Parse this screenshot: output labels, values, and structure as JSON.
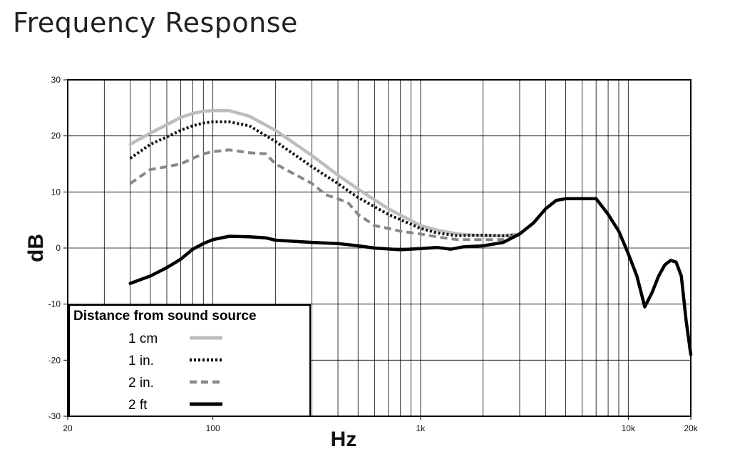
{
  "title": "Frequency Response",
  "chart_data": {
    "type": "line",
    "xlabel": "Hz",
    "ylabel": "dB",
    "xscale": "log",
    "xlim": [
      20,
      20000
    ],
    "ylim": [
      -30,
      30
    ],
    "grid": true,
    "x_tick_labels": [
      {
        "value": 20,
        "label": "20"
      },
      {
        "value": 100,
        "label": "100"
      },
      {
        "value": 1000,
        "label": "1k"
      },
      {
        "value": 10000,
        "label": "10k"
      },
      {
        "value": 20000,
        "label": "20k"
      }
    ],
    "y_tick_labels": [
      {
        "value": 30,
        "label": "30"
      },
      {
        "value": 20,
        "label": "20"
      },
      {
        "value": 10,
        "label": "10"
      },
      {
        "value": 0,
        "label": "0"
      },
      {
        "value": -10,
        "label": "-10"
      },
      {
        "value": -20,
        "label": "-20"
      },
      {
        "value": -30,
        "label": "-30"
      }
    ],
    "legend": {
      "title": "Distance from sound source",
      "position": "bottom-left"
    },
    "series": [
      {
        "name": "1 cm",
        "color": "#bdbdbd",
        "style": "solid",
        "points": [
          [
            40,
            18.5
          ],
          [
            50,
            20.5
          ],
          [
            60,
            22
          ],
          [
            70,
            23.3
          ],
          [
            80,
            24
          ],
          [
            90,
            24.4
          ],
          [
            100,
            24.5
          ],
          [
            120,
            24.5
          ],
          [
            150,
            23.5
          ],
          [
            200,
            21
          ],
          [
            300,
            16.5
          ],
          [
            400,
            13
          ],
          [
            500,
            10.5
          ],
          [
            700,
            7
          ],
          [
            1000,
            4
          ],
          [
            1200,
            3.2
          ],
          [
            1500,
            2.5
          ],
          [
            2000,
            2.2
          ],
          [
            2500,
            2.2
          ],
          [
            3000,
            2.5
          ]
        ]
      },
      {
        "name": "1 in.",
        "color": "#111111",
        "style": "dotted",
        "points": [
          [
            40,
            16
          ],
          [
            50,
            18.5
          ],
          [
            60,
            19.8
          ],
          [
            70,
            21
          ],
          [
            80,
            21.8
          ],
          [
            90,
            22.3
          ],
          [
            100,
            22.5
          ],
          [
            120,
            22.5
          ],
          [
            150,
            21.8
          ],
          [
            200,
            19
          ],
          [
            300,
            14.5
          ],
          [
            400,
            11.5
          ],
          [
            500,
            9
          ],
          [
            700,
            6
          ],
          [
            1000,
            3.5
          ],
          [
            1200,
            2.7
          ],
          [
            1500,
            2.2
          ],
          [
            2000,
            2.3
          ],
          [
            2500,
            2.2
          ],
          [
            3000,
            2.3
          ]
        ]
      },
      {
        "name": "2 in.",
        "color": "#888888",
        "style": "dashed",
        "points": [
          [
            40,
            11.5
          ],
          [
            50,
            14
          ],
          [
            60,
            14.5
          ],
          [
            70,
            15
          ],
          [
            80,
            16
          ],
          [
            90,
            16.8
          ],
          [
            100,
            17.2
          ],
          [
            120,
            17.5
          ],
          [
            150,
            17
          ],
          [
            180,
            16.8
          ],
          [
            200,
            15
          ],
          [
            300,
            11.5
          ],
          [
            350,
            9.5
          ],
          [
            400,
            8.8
          ],
          [
            450,
            8
          ],
          [
            500,
            6
          ],
          [
            600,
            4
          ],
          [
            700,
            3.5
          ],
          [
            800,
            3
          ],
          [
            1000,
            2.5
          ],
          [
            1200,
            2
          ],
          [
            1500,
            1.5
          ],
          [
            2000,
            1.5
          ],
          [
            2500,
            1.5
          ],
          [
            3000,
            2.5
          ]
        ]
      },
      {
        "name": "2 ft",
        "color": "#000000",
        "style": "solid",
        "points": [
          [
            40,
            -6.3
          ],
          [
            50,
            -5
          ],
          [
            60,
            -3.5
          ],
          [
            70,
            -2
          ],
          [
            80,
            -0.2
          ],
          [
            90,
            0.8
          ],
          [
            100,
            1.5
          ],
          [
            120,
            2.1
          ],
          [
            150,
            2
          ],
          [
            180,
            1.8
          ],
          [
            200,
            1.4
          ],
          [
            300,
            1
          ],
          [
            400,
            0.8
          ],
          [
            500,
            0.4
          ],
          [
            600,
            0
          ],
          [
            800,
            -0.3
          ],
          [
            1000,
            -0.1
          ],
          [
            1200,
            0.1
          ],
          [
            1400,
            -0.2
          ],
          [
            1600,
            0.2
          ],
          [
            2000,
            0.4
          ],
          [
            2500,
            1
          ],
          [
            3000,
            2.5
          ],
          [
            3500,
            4.5
          ],
          [
            4000,
            7
          ],
          [
            4500,
            8.5
          ],
          [
            5000,
            8.8
          ],
          [
            6000,
            8.8
          ],
          [
            7000,
            8.8
          ],
          [
            8000,
            6
          ],
          [
            9000,
            3
          ],
          [
            10000,
            -1
          ],
          [
            11000,
            -5
          ],
          [
            12000,
            -10.5
          ],
          [
            13000,
            -8
          ],
          [
            14000,
            -5
          ],
          [
            15000,
            -3
          ],
          [
            16000,
            -2.2
          ],
          [
            17000,
            -2.5
          ],
          [
            18000,
            -5
          ],
          [
            19000,
            -13
          ],
          [
            20000,
            -19
          ]
        ]
      }
    ]
  }
}
